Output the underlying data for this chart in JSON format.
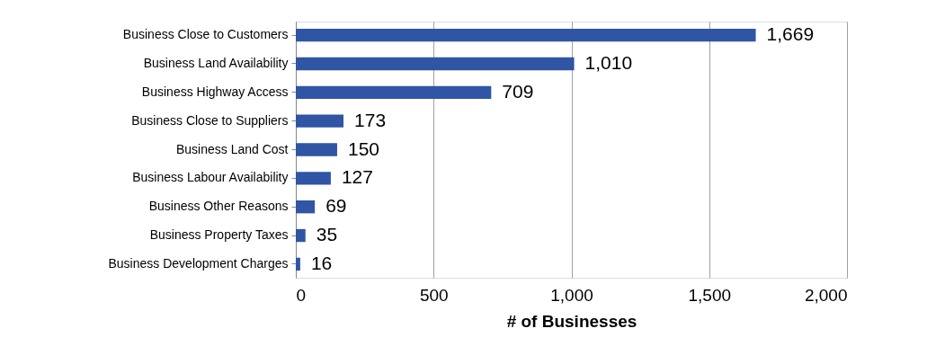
{
  "chart_data": {
    "type": "bar",
    "orientation": "horizontal",
    "xlabel": "# of Businesses",
    "categories": [
      "Business Close to Customers",
      "Business Land Availability",
      "Business Highway Access",
      "Business Close to Suppliers",
      "Business Land Cost",
      "Business Labour Availability",
      "Business Other Reasons",
      "Business Property Taxes",
      "Business Development Charges"
    ],
    "values": [
      1669,
      1010,
      709,
      173,
      150,
      127,
      69,
      35,
      16
    ],
    "value_labels": [
      "1,669",
      "1,010",
      "709",
      "173",
      "150",
      "127",
      "69",
      "35",
      "16"
    ],
    "color": "#2f55a4",
    "xlim": [
      0,
      2000
    ],
    "xticks": [
      0,
      500,
      {
        "value": 1000,
        "label": "1,000"
      },
      {
        "value": 1500,
        "label": "1,500"
      },
      {
        "value": 2000,
        "label": "2,000"
      }
    ],
    "grid": "x"
  }
}
